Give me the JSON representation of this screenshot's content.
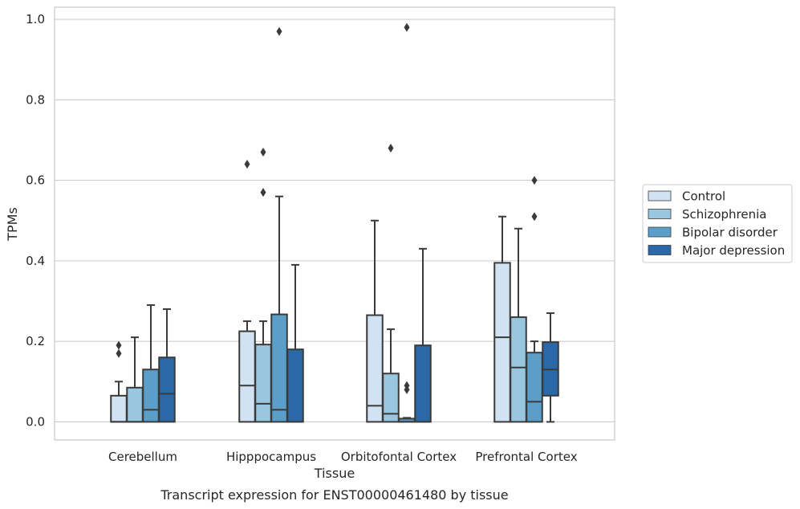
{
  "chart_data": {
    "type": "box",
    "caption": "Transcript expression for ENST00000461480 by tissue",
    "xlabel": "Tissue",
    "ylabel": "TPMs",
    "ylim": [
      -0.045,
      1.03
    ],
    "yticks": [
      "0.0",
      "0.2",
      "0.4",
      "0.6",
      "0.8",
      "1.0"
    ],
    "ytick_values": [
      0.0,
      0.2,
      0.4,
      0.6,
      0.8,
      1.0
    ],
    "grid": true,
    "legend_position": "right",
    "categories": [
      "Cerebellum",
      "Hipppocampus",
      "Orbitofontal Cortex",
      "Prefrontal Cortex"
    ],
    "series": [
      {
        "name": "Control",
        "color": "#d1e2f2",
        "boxes": [
          {
            "q1": 0.0,
            "median": 0.0,
            "q3": 0.065,
            "whisker_low": 0.0,
            "whisker_high": 0.1,
            "outliers": [
              0.17,
              0.19
            ]
          },
          {
            "q1": 0.0,
            "median": 0.09,
            "q3": 0.225,
            "whisker_low": 0.0,
            "whisker_high": 0.25,
            "outliers": [
              0.64
            ]
          },
          {
            "q1": 0.0,
            "median": 0.04,
            "q3": 0.265,
            "whisker_low": 0.0,
            "whisker_high": 0.5,
            "outliers": []
          },
          {
            "q1": 0.0,
            "median": 0.21,
            "q3": 0.395,
            "whisker_low": 0.0,
            "whisker_high": 0.51,
            "outliers": []
          }
        ]
      },
      {
        "name": "Schizophrenia",
        "color": "#9ac7e0",
        "boxes": [
          {
            "q1": 0.0,
            "median": 0.0,
            "q3": 0.085,
            "whisker_low": 0.0,
            "whisker_high": 0.21,
            "outliers": []
          },
          {
            "q1": 0.0,
            "median": 0.045,
            "q3": 0.192,
            "whisker_low": 0.0,
            "whisker_high": 0.25,
            "outliers": [
              0.57,
              0.67
            ]
          },
          {
            "q1": 0.0,
            "median": 0.02,
            "q3": 0.12,
            "whisker_low": 0.0,
            "whisker_high": 0.23,
            "outliers": [
              0.68
            ]
          },
          {
            "q1": 0.0,
            "median": 0.135,
            "q3": 0.26,
            "whisker_low": 0.0,
            "whisker_high": 0.48,
            "outliers": []
          }
        ]
      },
      {
        "name": "Bipolar disorder",
        "color": "#5b9fc9",
        "boxes": [
          {
            "q1": 0.0,
            "median": 0.03,
            "q3": 0.13,
            "whisker_low": 0.0,
            "whisker_high": 0.29,
            "outliers": []
          },
          {
            "q1": 0.0,
            "median": 0.03,
            "q3": 0.267,
            "whisker_low": 0.0,
            "whisker_high": 0.56,
            "outliers": [
              0.97
            ]
          },
          {
            "q1": 0.0,
            "median": 0.0,
            "q3": 0.008,
            "whisker_low": 0.0,
            "whisker_high": 0.01,
            "outliers": [
              0.08,
              0.09,
              0.98
            ]
          },
          {
            "q1": 0.0,
            "median": 0.05,
            "q3": 0.172,
            "whisker_low": 0.0,
            "whisker_high": 0.2,
            "outliers": [
              0.51,
              0.6
            ]
          }
        ]
      },
      {
        "name": "Major depression",
        "color": "#2a68a7",
        "boxes": [
          {
            "q1": 0.0,
            "median": 0.07,
            "q3": 0.16,
            "whisker_low": 0.0,
            "whisker_high": 0.28,
            "outliers": []
          },
          {
            "q1": 0.0,
            "median": 0.0,
            "q3": 0.18,
            "whisker_low": 0.0,
            "whisker_high": 0.39,
            "outliers": []
          },
          {
            "q1": 0.0,
            "median": 0.0,
            "q3": 0.19,
            "whisker_low": 0.0,
            "whisker_high": 0.43,
            "outliers": []
          },
          {
            "q1": 0.065,
            "median": 0.13,
            "q3": 0.198,
            "whisker_low": 0.0,
            "whisker_high": 0.27,
            "outliers": []
          }
        ]
      }
    ],
    "style": {
      "edge_color": "#3a3a3a",
      "grid_color": "#cccccc",
      "frame_color": "#c8c8c8",
      "background": "#ffffff"
    }
  }
}
